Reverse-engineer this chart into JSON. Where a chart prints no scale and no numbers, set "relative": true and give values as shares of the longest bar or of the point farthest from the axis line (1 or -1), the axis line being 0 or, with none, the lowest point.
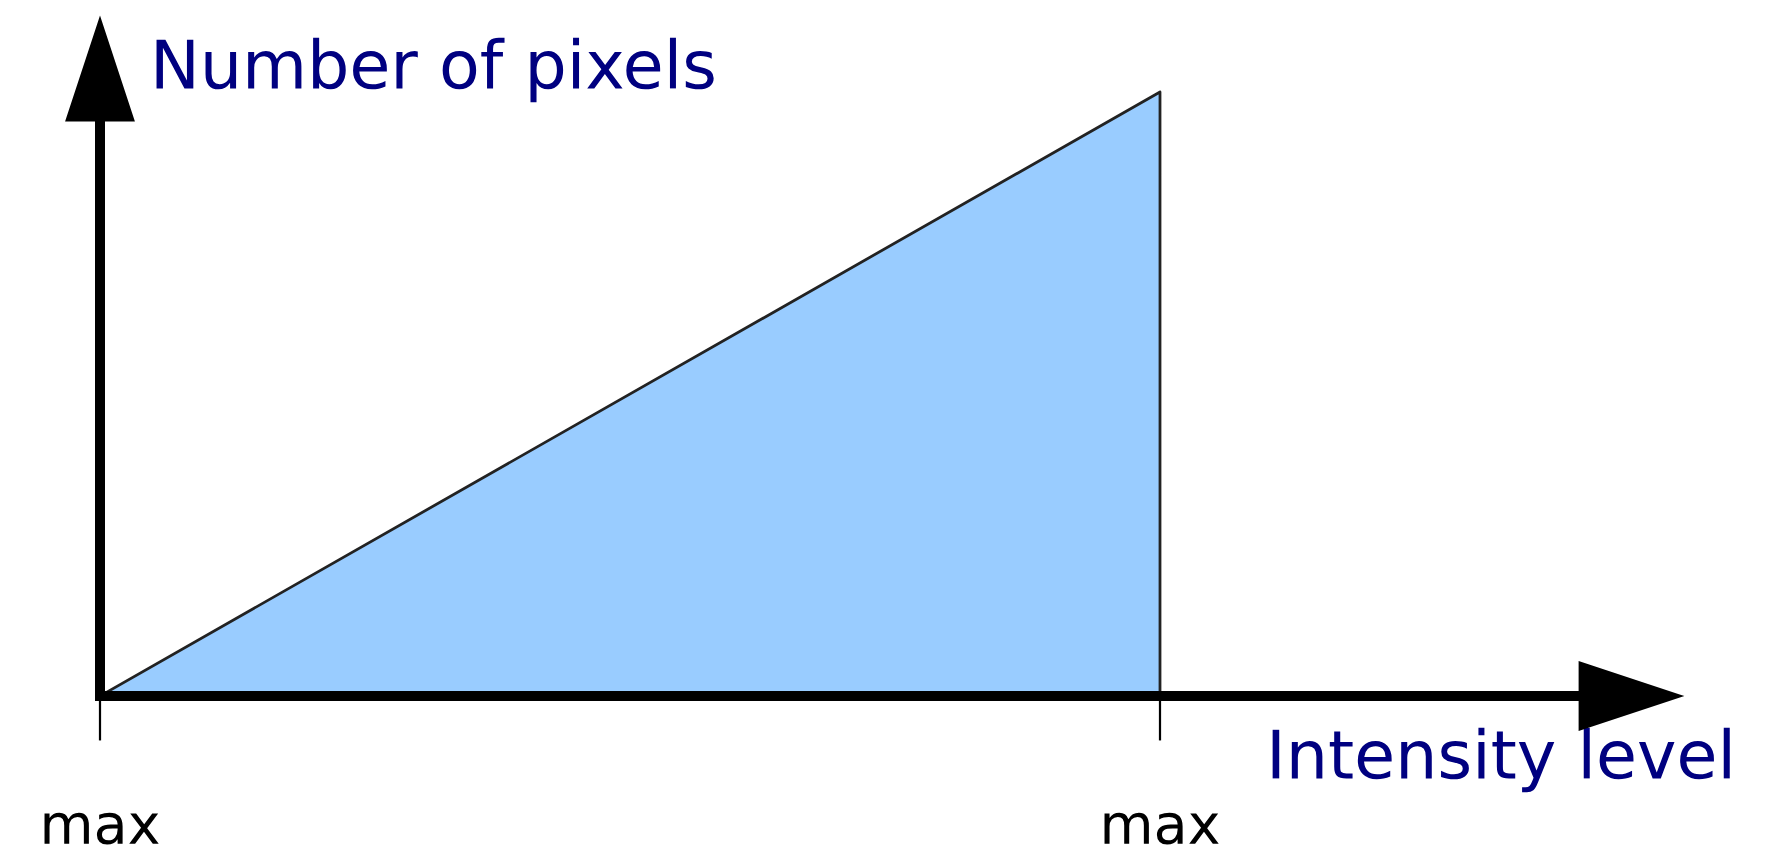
{
  "chart_data": {
    "type": "area",
    "xlabel": "Intensity level",
    "ylabel": "Number of pixels",
    "categories": [
      "max",
      "max"
    ],
    "values": [
      0,
      1
    ],
    "color": "#99ccff",
    "relative": true
  }
}
